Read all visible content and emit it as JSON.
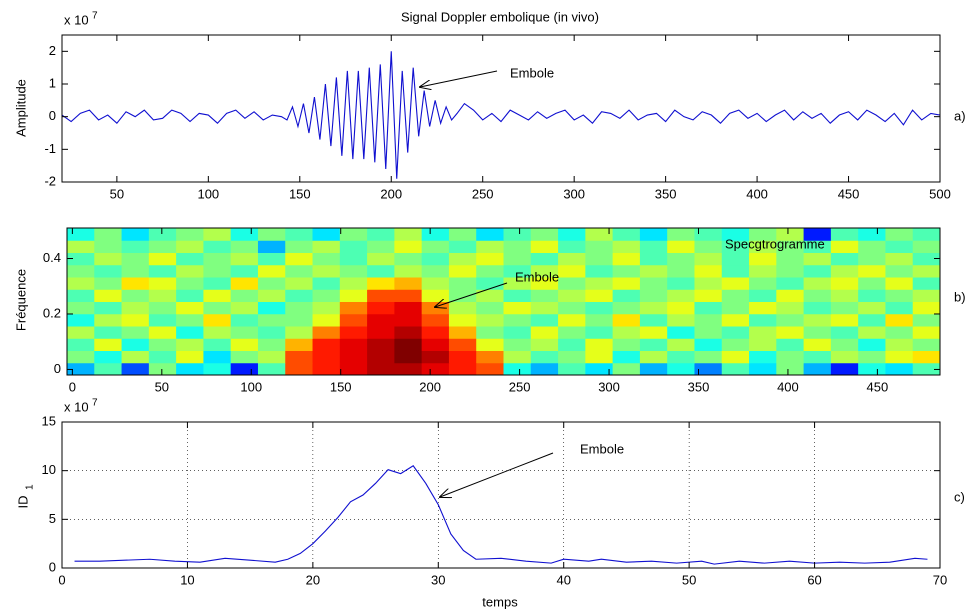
{
  "chart_data": [
    {
      "type": "line",
      "title": "Signal Doppler embolique (in vivo)",
      "ylabel": "Amplitude",
      "panel_label": "a)",
      "annotation": "Embole",
      "y_multiplier": {
        "text": "x 10",
        "exponent": "7"
      },
      "color": "#1010d0",
      "grid": false,
      "xlim": [
        20,
        500
      ],
      "xticks": [
        50,
        100,
        150,
        200,
        250,
        300,
        350,
        400,
        450,
        500
      ],
      "ylim": [
        -2,
        2.5
      ],
      "yticks": [
        -2,
        -1,
        0,
        1,
        2
      ],
      "x": [
        20,
        25,
        30,
        35,
        40,
        45,
        50,
        55,
        60,
        65,
        70,
        75,
        80,
        85,
        90,
        95,
        100,
        105,
        110,
        115,
        120,
        125,
        130,
        135,
        140,
        143,
        146,
        149,
        152,
        155,
        158,
        161,
        164,
        167,
        170,
        173,
        176,
        179,
        182,
        185,
        188,
        191,
        194,
        197,
        200,
        203,
        206,
        209,
        212,
        215,
        218,
        221,
        224,
        227,
        230,
        233,
        236,
        240,
        245,
        250,
        255,
        260,
        265,
        270,
        275,
        280,
        285,
        290,
        295,
        300,
        305,
        310,
        315,
        320,
        325,
        330,
        335,
        340,
        345,
        350,
        355,
        360,
        365,
        370,
        375,
        380,
        385,
        390,
        395,
        400,
        405,
        410,
        415,
        420,
        425,
        430,
        435,
        440,
        445,
        450,
        455,
        460,
        465,
        470,
        475,
        480,
        485,
        490,
        495,
        500
      ],
      "values": [
        0.05,
        -0.15,
        0.1,
        0.2,
        -0.1,
        0.05,
        -0.2,
        0.15,
        0.0,
        0.2,
        -0.1,
        -0.05,
        0.2,
        0.1,
        -0.15,
        0.1,
        0.05,
        -0.2,
        0.1,
        0.2,
        -0.05,
        0.15,
        -0.1,
        0.05,
        0,
        -0.1,
        0.3,
        -0.3,
        0.4,
        -0.5,
        0.6,
        -0.7,
        1.0,
        -0.9,
        1.2,
        -1.2,
        1.4,
        -1.3,
        1.4,
        -1.3,
        1.5,
        -1.4,
        1.6,
        -1.6,
        2.0,
        -1.9,
        1.4,
        -1.1,
        1.5,
        -0.6,
        0.8,
        -0.3,
        0.5,
        -0.2,
        0.3,
        -0.1,
        0.1,
        0.4,
        0.2,
        -0.1,
        0.1,
        -0.15,
        0.2,
        0.05,
        -0.1,
        0.15,
        -0.05,
        0.1,
        0.2,
        -0.1,
        0.05,
        -0.2,
        0.15,
        0.1,
        -0.05,
        0.2,
        -0.1,
        0.05,
        0.1,
        -0.15,
        0.2,
        0.0,
        -0.1,
        0.15,
        0.05,
        -0.2,
        0.1,
        0.2,
        -0.05,
        0.1,
        -0.15,
        0.05,
        0.2,
        -0.1,
        0.15,
        -0.05,
        0.1,
        -0.2,
        0.05,
        0.15,
        -0.1,
        0.2,
        0.05,
        -0.15,
        0.1,
        -0.25,
        0.2,
        -0.1,
        0.1,
        0.05
      ]
    },
    {
      "type": "heatmap",
      "ylabel": "Fréquence",
      "panel_label": "b)",
      "annotation": "Embole",
      "label": "Specgtrogramme",
      "colormap": "jet",
      "zlim": [
        0,
        1
      ],
      "xlim": [
        -3,
        485
      ],
      "xticks": [
        0,
        50,
        100,
        150,
        200,
        250,
        300,
        350,
        400,
        450
      ],
      "ylim": [
        -0.02,
        0.51
      ],
      "yticks": [
        0,
        0.2,
        0.4
      ],
      "z": [
        [
          0.3,
          0.45,
          0.2,
          0.5,
          0.35,
          0.4,
          0.15,
          0.45,
          0.8,
          0.85,
          0.9,
          0.95,
          0.95,
          0.9,
          0.85,
          0.8,
          0.4,
          0.3,
          0.45,
          0.35,
          0.5,
          0.3,
          0.4,
          0.25,
          0.45,
          0.35,
          0.5,
          0.3,
          0.15,
          0.4,
          0.35,
          0.45
        ],
        [
          0.5,
          0.4,
          0.55,
          0.45,
          0.6,
          0.35,
          0.5,
          0.55,
          0.8,
          0.85,
          0.9,
          0.95,
          1.0,
          0.95,
          0.85,
          0.75,
          0.55,
          0.45,
          0.5,
          0.6,
          0.4,
          0.55,
          0.45,
          0.5,
          0.6,
          0.4,
          0.5,
          0.45,
          0.55,
          0.5,
          0.6,
          0.65
        ],
        [
          0.45,
          0.6,
          0.4,
          0.5,
          0.55,
          0.45,
          0.6,
          0.5,
          0.7,
          0.85,
          0.9,
          0.95,
          1.0,
          0.9,
          0.8,
          0.6,
          0.5,
          0.55,
          0.45,
          0.6,
          0.5,
          0.45,
          0.55,
          0.4,
          0.5,
          0.55,
          0.45,
          0.6,
          0.5,
          0.4,
          0.55,
          0.5
        ],
        [
          0.55,
          0.45,
          0.5,
          0.6,
          0.4,
          0.55,
          0.5,
          0.45,
          0.55,
          0.75,
          0.85,
          0.9,
          0.95,
          0.85,
          0.7,
          0.5,
          0.45,
          0.6,
          0.5,
          0.45,
          0.55,
          0.6,
          0.4,
          0.5,
          0.45,
          0.55,
          0.6,
          0.5,
          0.45,
          0.55,
          0.5,
          0.6
        ],
        [
          0.4,
          0.55,
          0.6,
          0.45,
          0.5,
          0.65,
          0.45,
          0.5,
          0.5,
          0.6,
          0.8,
          0.9,
          0.9,
          0.8,
          0.6,
          0.55,
          0.5,
          0.45,
          0.6,
          0.5,
          0.65,
          0.45,
          0.55,
          0.5,
          0.6,
          0.45,
          0.5,
          0.55,
          0.6,
          0.45,
          0.65,
          0.5
        ],
        [
          0.5,
          0.45,
          0.55,
          0.5,
          0.6,
          0.5,
          0.55,
          0.4,
          0.5,
          0.55,
          0.75,
          0.85,
          0.9,
          0.75,
          0.55,
          0.5,
          0.6,
          0.55,
          0.5,
          0.45,
          0.5,
          0.55,
          0.6,
          0.45,
          0.5,
          0.6,
          0.55,
          0.45,
          0.5,
          0.55,
          0.45,
          0.6
        ],
        [
          0.45,
          0.6,
          0.5,
          0.55,
          0.45,
          0.6,
          0.5,
          0.55,
          0.45,
          0.5,
          0.6,
          0.8,
          0.8,
          0.6,
          0.5,
          0.55,
          0.45,
          0.5,
          0.55,
          0.6,
          0.45,
          0.5,
          0.55,
          0.6,
          0.5,
          0.45,
          0.6,
          0.5,
          0.55,
          0.45,
          0.5,
          0.55
        ],
        [
          0.55,
          0.5,
          0.65,
          0.6,
          0.5,
          0.45,
          0.65,
          0.5,
          0.55,
          0.45,
          0.55,
          0.65,
          0.7,
          0.55,
          0.5,
          0.45,
          0.55,
          0.6,
          0.5,
          0.55,
          0.6,
          0.5,
          0.45,
          0.55,
          0.6,
          0.5,
          0.45,
          0.55,
          0.6,
          0.5,
          0.6,
          0.45
        ],
        [
          0.5,
          0.45,
          0.5,
          0.45,
          0.55,
          0.5,
          0.45,
          0.6,
          0.5,
          0.55,
          0.5,
          0.45,
          0.55,
          0.5,
          0.6,
          0.5,
          0.45,
          0.55,
          0.6,
          0.45,
          0.5,
          0.55,
          0.5,
          0.6,
          0.45,
          0.55,
          0.5,
          0.45,
          0.55,
          0.6,
          0.5,
          0.55
        ],
        [
          0.45,
          0.55,
          0.5,
          0.6,
          0.45,
          0.5,
          0.55,
          0.45,
          0.6,
          0.5,
          0.45,
          0.55,
          0.5,
          0.45,
          0.55,
          0.6,
          0.5,
          0.45,
          0.55,
          0.5,
          0.6,
          0.45,
          0.5,
          0.55,
          0.45,
          0.6,
          0.5,
          0.55,
          0.45,
          0.5,
          0.55,
          0.45
        ],
        [
          0.55,
          0.5,
          0.45,
          0.5,
          0.55,
          0.45,
          0.5,
          0.3,
          0.5,
          0.55,
          0.45,
          0.5,
          0.6,
          0.5,
          0.45,
          0.55,
          0.5,
          0.6,
          0.45,
          0.5,
          0.55,
          0.45,
          0.6,
          0.5,
          0.45,
          0.55,
          0.5,
          0.45,
          0.6,
          0.5,
          0.45,
          0.5
        ],
        [
          0.4,
          0.5,
          0.35,
          0.45,
          0.5,
          0.55,
          0.4,
          0.5,
          0.45,
          0.35,
          0.5,
          0.45,
          0.55,
          0.4,
          0.5,
          0.35,
          0.45,
          0.5,
          0.4,
          0.55,
          0.45,
          0.35,
          0.5,
          0.45,
          0.4,
          0.5,
          0.55,
          0.15,
          0.45,
          0.4,
          0.5,
          0.45
        ]
      ]
    },
    {
      "type": "line",
      "ylabel": "ID",
      "ylabel_subscript": "1",
      "xlabel": "temps",
      "panel_label": "c)",
      "annotation": "Embole",
      "y_multiplier": {
        "text": "x 10",
        "exponent": "7"
      },
      "color": "#1010d0",
      "grid": true,
      "xlim": [
        0,
        70
      ],
      "xticks": [
        0,
        10,
        20,
        30,
        40,
        50,
        60,
        70
      ],
      "ylim": [
        0,
        15
      ],
      "yticks": [
        0,
        5,
        10,
        15
      ],
      "x": [
        1,
        3,
        5,
        7,
        9,
        11,
        13,
        15,
        17,
        18,
        19,
        20,
        21,
        22,
        23,
        24,
        25,
        26,
        27,
        28,
        29,
        30,
        31,
        32,
        33,
        35,
        37,
        39,
        40,
        42,
        43,
        45,
        47,
        49,
        51,
        52,
        54,
        56,
        58,
        60,
        62,
        64,
        66,
        68,
        69
      ],
      "values": [
        0.7,
        0.7,
        0.8,
        0.9,
        0.7,
        0.6,
        1.0,
        0.8,
        0.6,
        0.9,
        1.5,
        2.5,
        3.8,
        5.2,
        6.8,
        7.5,
        8.7,
        10.1,
        9.7,
        10.5,
        8.7,
        6.5,
        3.5,
        1.8,
        0.9,
        1.0,
        0.7,
        0.5,
        0.9,
        0.7,
        0.9,
        0.6,
        0.7,
        0.5,
        0.7,
        0.4,
        0.7,
        0.5,
        0.7,
        0.5,
        0.6,
        0.5,
        0.6,
        1.0,
        0.9
      ]
    }
  ]
}
